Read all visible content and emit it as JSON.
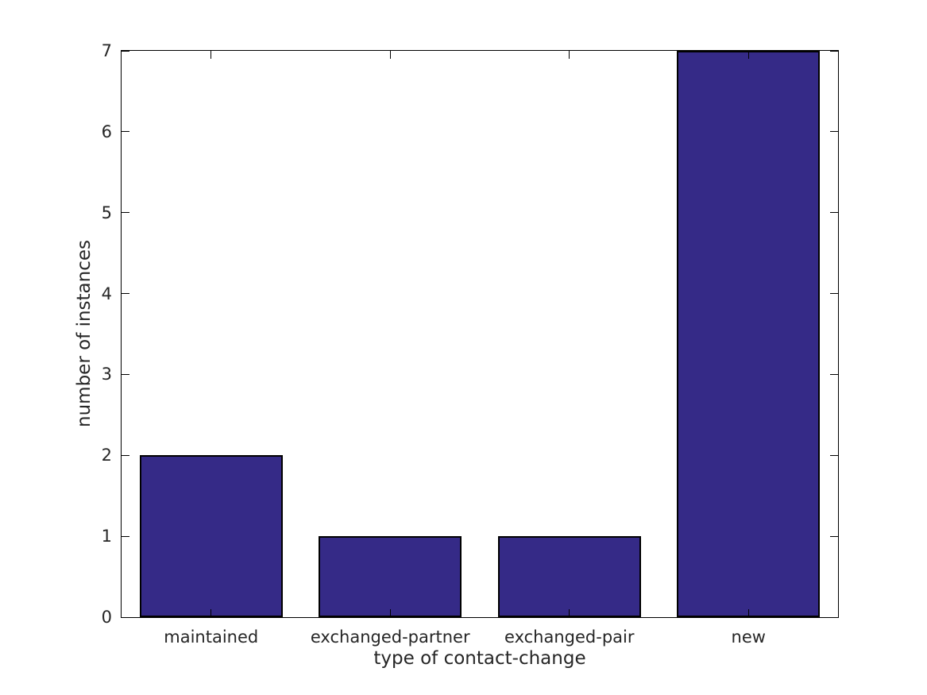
{
  "chart_data": {
    "type": "bar",
    "categories": [
      "maintained",
      "exchanged-partner",
      "exchanged-pair",
      "new"
    ],
    "values": [
      2,
      1,
      1,
      7
    ],
    "title": "",
    "xlabel": "type of contact-change",
    "ylabel": "number of instances",
    "ylim": [
      0,
      7
    ],
    "yticks": [
      0,
      1,
      2,
      3,
      4,
      5,
      6,
      7
    ],
    "bar_width_fraction": 0.8,
    "bar_color": "#352a87",
    "bar_edge_color": "#000000",
    "axis_color": "#000000",
    "text_color": "#262626",
    "background_color": "#ffffff",
    "grid": false,
    "legend": "none",
    "tick_style": "inward-mirrored"
  }
}
